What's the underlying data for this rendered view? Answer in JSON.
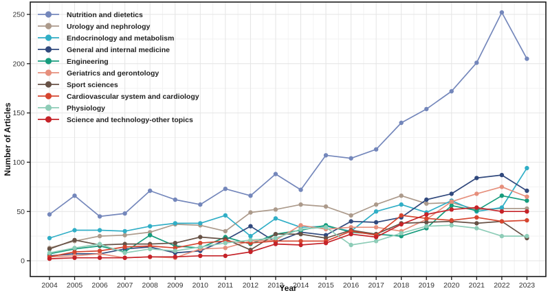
{
  "chart_data": {
    "type": "line",
    "title": "",
    "xlabel": "Year",
    "ylabel": "Number of Articles",
    "x": [
      2004,
      2005,
      2006,
      2007,
      2008,
      2009,
      2010,
      2011,
      2012,
      2013,
      2014,
      2015,
      2016,
      2017,
      2018,
      2019,
      2020,
      2021,
      2022,
      2023
    ],
    "ylim": [
      0,
      250
    ],
    "yticks": [
      0,
      50,
      100,
      150,
      200,
      250
    ],
    "grid": true,
    "legend_position": "top-left",
    "colors": {
      "plot_border": "#1a1a1a",
      "grid_major": "#e4e4e4",
      "grid_minor": "#f2f2f2",
      "tick_text": "#333333",
      "background": "#ffffff"
    },
    "series": [
      {
        "name": "Nutrition and dietetics",
        "color": "#7487BB",
        "values": [
          47,
          66,
          45,
          48,
          71,
          62,
          57,
          73,
          66,
          88,
          72,
          107,
          104,
          113,
          140,
          154,
          172,
          201,
          252,
          205
        ]
      },
      {
        "name": "Urology and nephrology",
        "color": "#AC9A8B",
        "values": [
          13,
          20,
          25,
          26,
          29,
          37,
          36,
          30,
          49,
          52,
          57,
          55,
          46,
          57,
          66,
          58,
          59,
          52,
          53,
          53
        ]
      },
      {
        "name": "Endocrinology and metabolism",
        "color": "#30AEC6",
        "values": [
          23,
          31,
          31,
          30,
          35,
          38,
          38,
          46,
          25,
          43,
          34,
          35,
          30,
          50,
          57,
          49,
          61,
          50,
          54,
          94
        ]
      },
      {
        "name": "General and internal medicine",
        "color": "#31497D",
        "values": [
          5,
          7,
          7,
          12,
          14,
          8,
          10,
          21,
          35,
          19,
          29,
          26,
          40,
          39,
          44,
          62,
          68,
          84,
          87,
          71
        ]
      },
      {
        "name": "Engineering",
        "color": "#169C7D",
        "values": [
          7,
          12,
          15,
          9,
          26,
          15,
          13,
          24,
          17,
          27,
          31,
          36,
          29,
          27,
          25,
          33,
          56,
          51,
          66,
          61
        ]
      },
      {
        "name": "Geriatrics and gerontology",
        "color": "#E68F7C",
        "values": [
          4,
          5,
          7,
          3,
          4,
          3,
          12,
          13,
          20,
          21,
          36,
          32,
          34,
          34,
          30,
          42,
          60,
          68,
          75,
          65
        ]
      },
      {
        "name": "Sport sciences",
        "color": "#675145",
        "values": [
          12,
          21,
          16,
          17,
          17,
          18,
          24,
          22,
          11,
          27,
          27,
          23,
          31,
          27,
          38,
          39,
          40,
          38,
          40,
          23
        ]
      },
      {
        "name": "Cardiovascular system and cardiology",
        "color": "#D6452F",
        "values": [
          4,
          9,
          10,
          14,
          15,
          13,
          18,
          20,
          18,
          20,
          20,
          20,
          30,
          26,
          46,
          43,
          41,
          44,
          40,
          41
        ]
      },
      {
        "name": "Physiology",
        "color": "#8DCCB7",
        "values": [
          8,
          13,
          17,
          8,
          12,
          10,
          14,
          18,
          21,
          23,
          32,
          34,
          16,
          20,
          28,
          35,
          36,
          33,
          25,
          25
        ]
      },
      {
        "name": "Science and technology-other topics",
        "color": "#C52228",
        "values": [
          2,
          3,
          3,
          3,
          4,
          4,
          5,
          5,
          9,
          17,
          16,
          18,
          27,
          24,
          37,
          47,
          52,
          54,
          50,
          50
        ]
      }
    ]
  }
}
